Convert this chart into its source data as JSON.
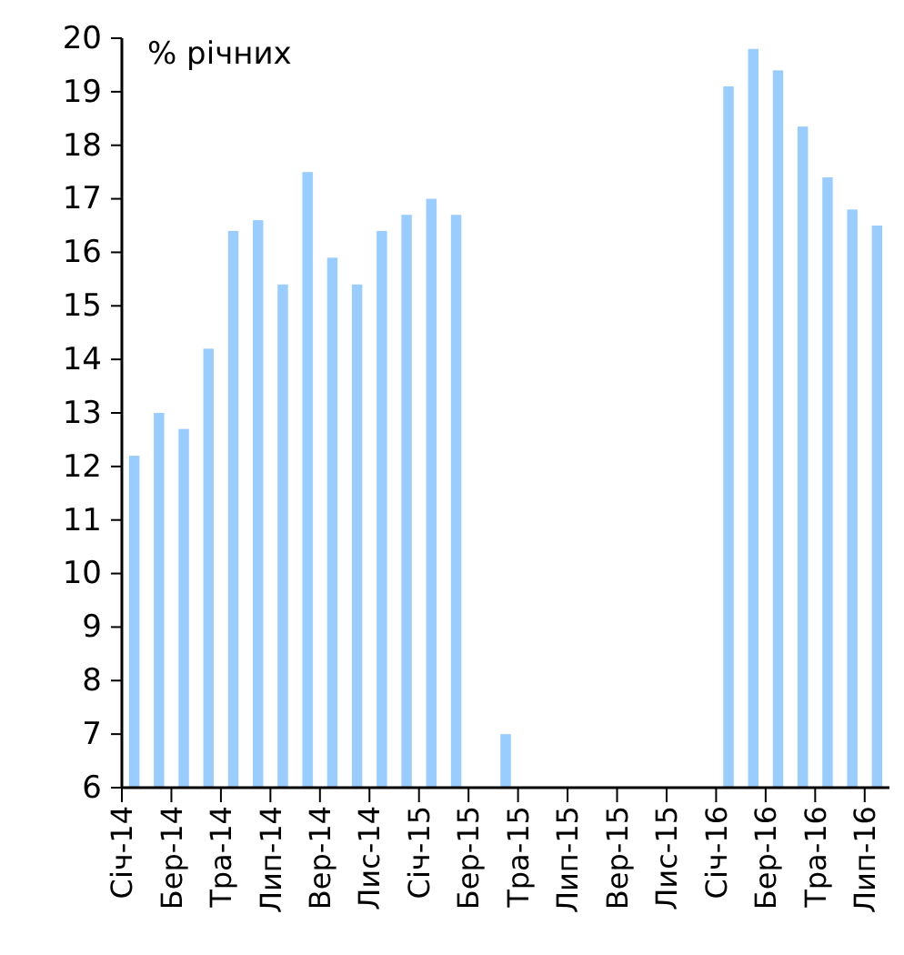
{
  "chart_data": {
    "type": "bar",
    "ylabel": "% річних",
    "categories": [
      "Січ-14",
      null,
      "Бер-14",
      null,
      "Тра-14",
      null,
      "Лип-14",
      null,
      "Вер-14",
      null,
      "Лис-14",
      null,
      "Січ-15",
      null,
      "Бер-15",
      null,
      "Тра-15",
      null,
      "Лип-15",
      null,
      "Вер-15",
      null,
      "Лис-15",
      null,
      "Січ-16",
      null,
      "Бер-16",
      null,
      "Тра-16",
      null,
      "Лип-16"
    ],
    "values": [
      12.2,
      13.0,
      12.7,
      14.2,
      16.4,
      16.6,
      15.4,
      17.5,
      15.9,
      15.4,
      16.4,
      16.7,
      17.0,
      16.7,
      null,
      7.0,
      null,
      null,
      null,
      null,
      null,
      null,
      null,
      null,
      19.1,
      19.8,
      19.4,
      18.35,
      17.4,
      16.8,
      16.5
    ],
    "color": "#99ccff",
    "ylim": [
      6,
      20
    ],
    "yticks": [
      6,
      7,
      8,
      9,
      10,
      11,
      12,
      13,
      14,
      15,
      16,
      17,
      18,
      19,
      20
    ],
    "grid": false
  }
}
